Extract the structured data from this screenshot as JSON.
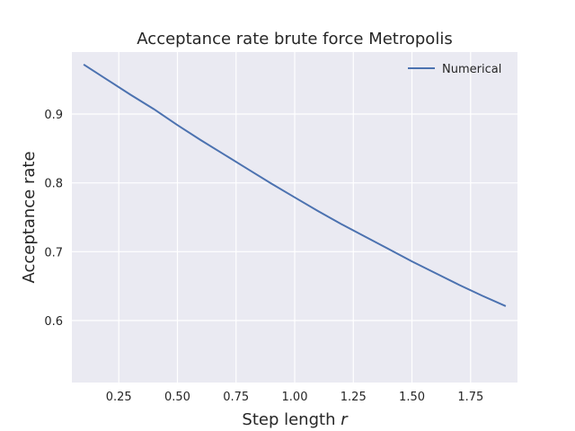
{
  "chart_data": {
    "type": "line",
    "title": "Acceptance rate brute force Metropolis",
    "xlabel": "Step length ",
    "xlabel_var": "r",
    "ylabel": "Acceptance rate",
    "xlim": [
      0.05,
      1.95
    ],
    "ylim": [
      0.51,
      0.99
    ],
    "xticks": [
      0.25,
      0.5,
      0.75,
      1.0,
      1.25,
      1.5,
      1.75
    ],
    "xtick_labels": [
      "0.25",
      "0.50",
      "0.75",
      "1.00",
      "1.25",
      "1.50",
      "1.75"
    ],
    "yticks": [
      0.6,
      0.7,
      0.8,
      0.9
    ],
    "ytick_labels": [
      "0.6",
      "0.7",
      "0.8",
      "0.9"
    ],
    "grid": true,
    "legend_position": "top-right",
    "colors": {
      "background": "#eaeaf2",
      "grid": "#ffffff",
      "line": "#4c72b0"
    },
    "series": [
      {
        "name": "Numerical",
        "x": [
          0.1,
          0.2,
          0.3,
          0.4,
          0.5,
          0.6,
          0.7,
          0.8,
          0.9,
          1.0,
          1.1,
          1.2,
          1.3,
          1.4,
          1.5,
          1.6,
          1.7,
          1.8,
          1.9
        ],
        "y": [
          0.972,
          0.95,
          0.928,
          0.907,
          0.884,
          0.862,
          0.841,
          0.82,
          0.799,
          0.779,
          0.759,
          0.74,
          0.722,
          0.704,
          0.686,
          0.669,
          0.652,
          0.636,
          0.621
        ]
      }
    ]
  }
}
